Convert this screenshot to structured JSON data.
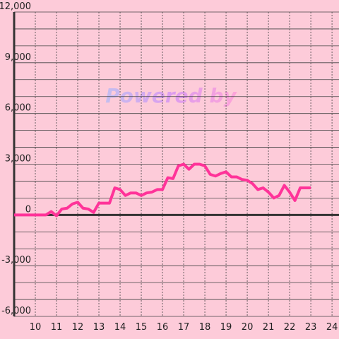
{
  "chart_data": {
    "type": "line",
    "watermark": "Powered by",
    "x": [
      9,
      10.5,
      10.75,
      11,
      11.25,
      11.5,
      11.75,
      12,
      12.25,
      12.5,
      12.75,
      13,
      13.5,
      13.75,
      14,
      14.25,
      14.5,
      14.75,
      15,
      15.25,
      15.5,
      15.75,
      16,
      16.25,
      16.5,
      16.75,
      17,
      17.25,
      17.5,
      17.75,
      18,
      18.25,
      18.5,
      18.75,
      19,
      19.25,
      19.5,
      19.75,
      20,
      20.25,
      20.5,
      20.75,
      21,
      21.25,
      21.5,
      21.75,
      22,
      22.25,
      22.5,
      23
    ],
    "series": [
      {
        "color": "#ff3399",
        "values": [
          0,
          0,
          200,
          -50,
          350,
          400,
          650,
          750,
          400,
          350,
          150,
          700,
          700,
          1600,
          1500,
          1150,
          1300,
          1300,
          1150,
          1300,
          1350,
          1500,
          1500,
          2200,
          2150,
          2900,
          3000,
          2700,
          3000,
          3000,
          2900,
          2400,
          2300,
          2450,
          2550,
          2250,
          2250,
          2100,
          2050,
          1850,
          1500,
          1600,
          1350,
          1000,
          1150,
          1750,
          1350,
          850,
          1600,
          1600
        ]
      }
    ],
    "xlim": [
      9,
      24.33
    ],
    "xticks": [
      10,
      11,
      12,
      13,
      14,
      15,
      16,
      17,
      18,
      19,
      20,
      21,
      22,
      23,
      24
    ],
    "ylim": [
      -6000,
      12000
    ],
    "yticks": [
      {
        "value": -6000,
        "label": "-6,000"
      },
      {
        "value": -3000,
        "label": "-3,000"
      },
      0,
      {
        "value": 3000,
        "label": "3,000"
      },
      {
        "value": 6000,
        "label": "6,000"
      },
      {
        "value": 9000,
        "label": "9,000"
      },
      {
        "value": 12000,
        "label": "12,000"
      }
    ],
    "minor_yticks": [
      -5000,
      -4000,
      -2000,
      -1000,
      1000,
      2000,
      4000,
      5000,
      7000,
      8000,
      10000,
      11000
    ],
    "grid": true
  }
}
